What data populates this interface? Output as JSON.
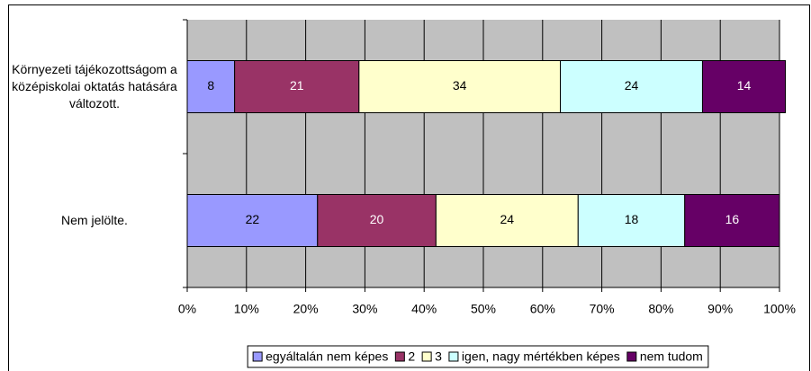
{
  "chart_data": {
    "type": "stacked-bar-horizontal",
    "categories": [
      "Környezeti tájékozottságom a középiskolai oktatás hatására változott.",
      "Nem jelölte."
    ],
    "series": [
      {
        "name": "egyáltalán nem képes",
        "color": "#9999ff",
        "values": [
          8,
          22
        ]
      },
      {
        "name": "2",
        "color": "#993366",
        "values": [
          21,
          20
        ]
      },
      {
        "name": "3",
        "color": "#ffffcc",
        "values": [
          34,
          24
        ]
      },
      {
        "name": "igen, nagy mértékben képes",
        "color": "#ccffff",
        "values": [
          24,
          18
        ]
      },
      {
        "name": "nem tudom",
        "color": "#660066",
        "values": [
          14,
          16
        ]
      }
    ],
    "xlim": [
      0,
      100
    ],
    "xticks": [
      {
        "value": 0,
        "label": "0%"
      },
      {
        "value": 10,
        "label": "10%"
      },
      {
        "value": 20,
        "label": "20%"
      },
      {
        "value": 30,
        "label": "30%"
      },
      {
        "value": 40,
        "label": "40%"
      },
      {
        "value": 50,
        "label": "50%"
      },
      {
        "value": 60,
        "label": "60%"
      },
      {
        "value": 70,
        "label": "70%"
      },
      {
        "value": 80,
        "label": "80%"
      },
      {
        "value": 90,
        "label": "90%"
      },
      {
        "value": 100,
        "label": "100%"
      }
    ],
    "grid": true,
    "legend": "bottom",
    "plot_background": "#c0c0c0"
  }
}
